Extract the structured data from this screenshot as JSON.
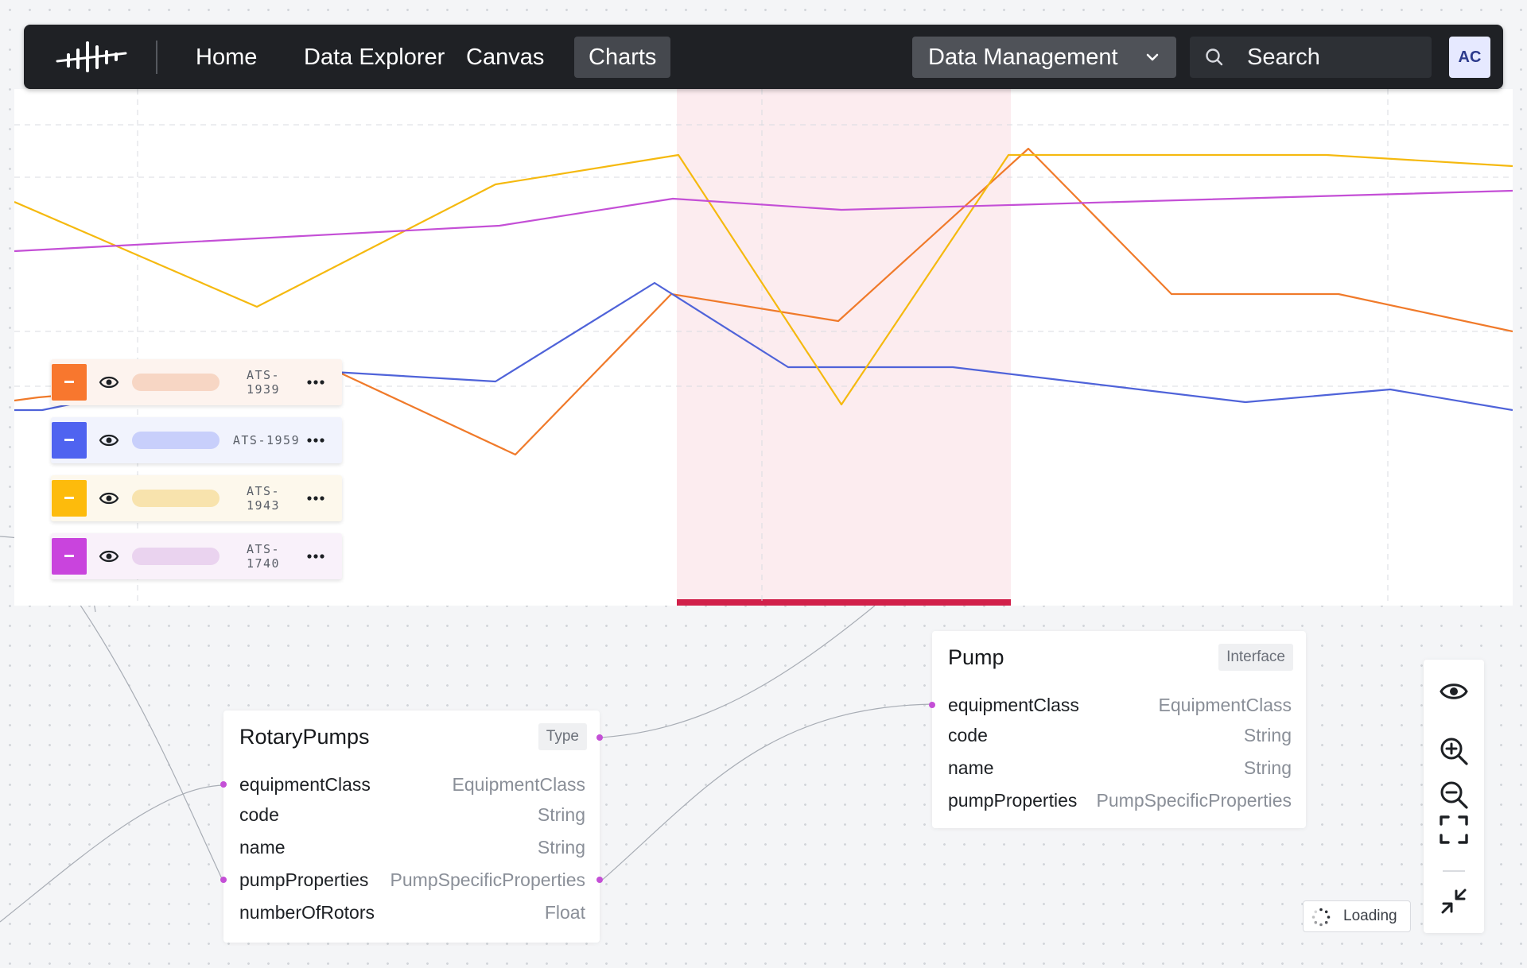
{
  "nav": {
    "items": [
      "Home",
      "Data Explorer",
      "Canvas",
      "Charts"
    ],
    "active": "Charts",
    "dropdown_label": "Data Management",
    "search_placeholder": "Search",
    "avatar_initials": "AC"
  },
  "chart_data": {
    "type": "line",
    "grid": true,
    "x": [
      0,
      1,
      2,
      3,
      4,
      5,
      6,
      7,
      8,
      9,
      10
    ],
    "series": [
      {
        "name": "ATS-1939",
        "color": "#f07a2a",
        "values": [
          null,
          null,
          30,
          14,
          58,
          53,
          81,
          62,
          62,
          48,
          null
        ]
      },
      {
        "name": "ATS-1959",
        "color": "#4f63d9",
        "values": [
          null,
          null,
          36,
          61,
          37,
          37,
          35,
          30,
          33,
          27,
          null
        ]
      },
      {
        "name": "ATS-1943",
        "color": "#f5b90f",
        "values": [
          null,
          null,
          100,
          118,
          38,
          117,
          117,
          117,
          113,
          null,
          null
        ]
      },
      {
        "name": "ATS-1740",
        "color": "#c44fd6",
        "values": [
          null,
          null,
          112,
          116,
          104,
          106,
          108,
          111,
          113,
          null,
          null
        ]
      }
    ],
    "highlight_range": "selected interval"
  },
  "legend": [
    {
      "label": "ATS-1939",
      "color": "#f8772e",
      "pill": "#f7d6c4",
      "row_bg": "#fdf3ee",
      "wrap": true
    },
    {
      "label": "ATS-1959",
      "color": "#4f63f0",
      "pill": "#c8cffb",
      "row_bg": "#f1f3fd",
      "wrap": false
    },
    {
      "label": "ATS-1943",
      "color": "#fdbb0c",
      "pill": "#f8e3ad",
      "row_bg": "#fdf8ec",
      "wrap": true
    },
    {
      "label": "ATS-1740",
      "color": "#c944dd",
      "pill": "#ead3ef",
      "row_bg": "#f9f1fa",
      "wrap": true
    }
  ],
  "nodes": {
    "rotary": {
      "title": "RotaryPumps",
      "badge": "Type",
      "props": [
        {
          "name": "equipmentClass",
          "type": "EquipmentClass"
        },
        {
          "name": "code",
          "type": "String"
        },
        {
          "name": "name",
          "type": "String"
        },
        {
          "name": "pumpProperties",
          "type": "PumpSpecificProperties"
        },
        {
          "name": "numberOfRotors",
          "type": "Float"
        }
      ]
    },
    "pump": {
      "title": "Pump",
      "badge": "Interface",
      "props": [
        {
          "name": "equipmentClass",
          "type": "EquipmentClass"
        },
        {
          "name": "code",
          "type": "String"
        },
        {
          "name": "name",
          "type": "String"
        },
        {
          "name": "pumpProperties",
          "type": "PumpSpecificProperties"
        }
      ]
    }
  },
  "status": {
    "loading_text": "Loading"
  },
  "toolbar": [
    "eye-icon",
    "zoom-in-icon",
    "zoom-out-icon",
    "fit-screen-icon",
    "collapse-icon"
  ]
}
